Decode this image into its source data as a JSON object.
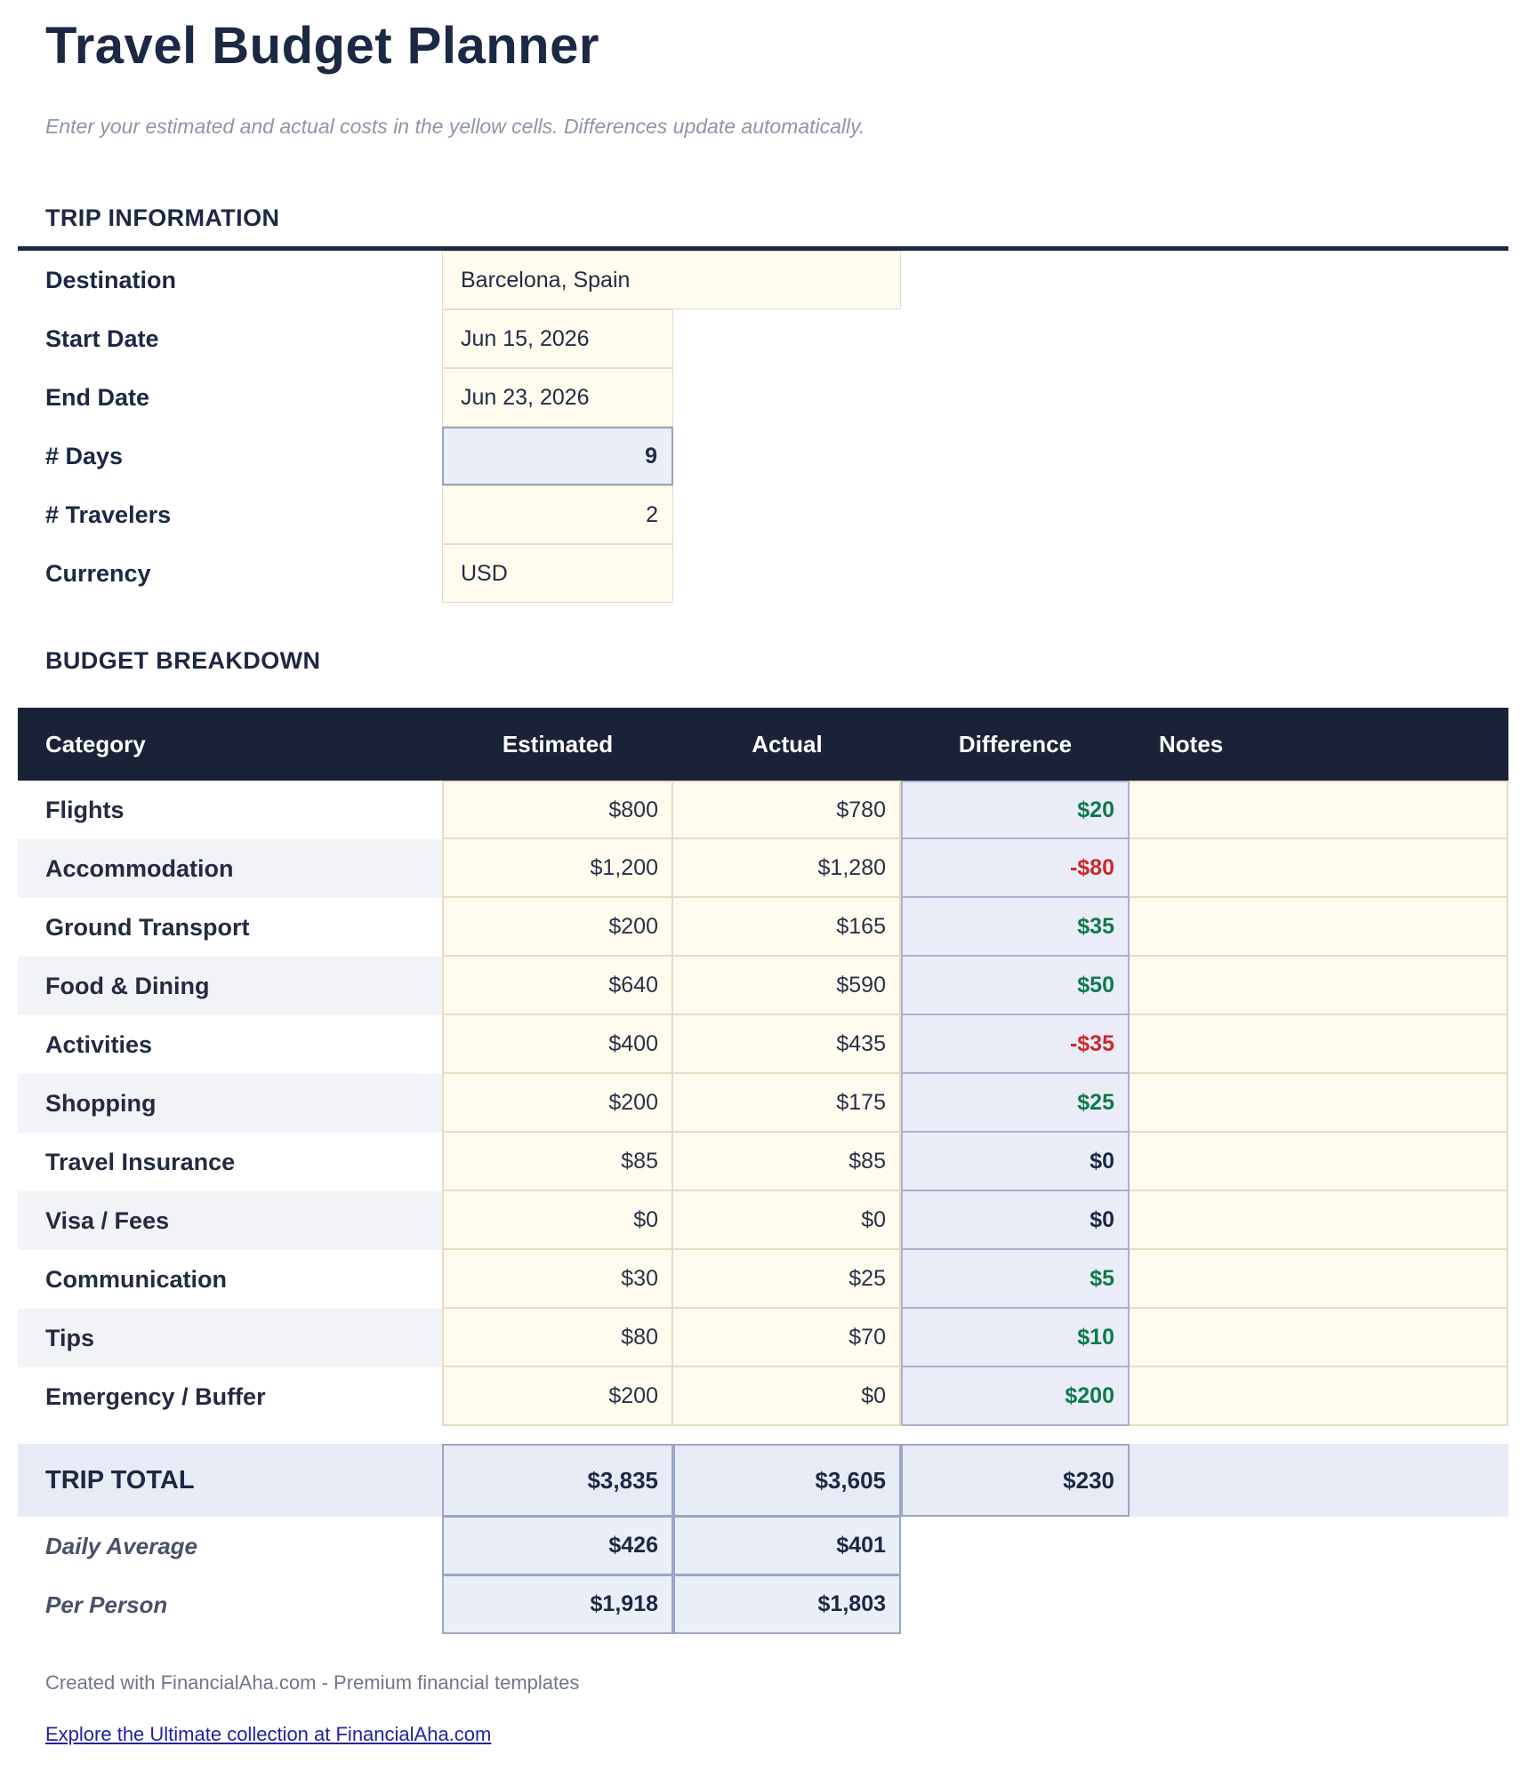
{
  "page": {
    "title": "Travel Budget Planner",
    "subtitle": "Enter your estimated and actual costs in the yellow cells. Differences update automatically."
  },
  "trip_info": {
    "heading": "TRIP INFORMATION",
    "rows": [
      {
        "label": "Destination",
        "value": "Barcelona, Spain"
      },
      {
        "label": "Start Date",
        "value": "Jun 15, 2026"
      },
      {
        "label": "End Date",
        "value": "Jun 23, 2026"
      },
      {
        "label": "# Days",
        "value": "9"
      },
      {
        "label": "# Travelers",
        "value": "2"
      },
      {
        "label": "Currency",
        "value": "USD"
      }
    ]
  },
  "budget": {
    "heading": "BUDGET BREAKDOWN",
    "columns": [
      "Category",
      "Estimated",
      "Actual",
      "Difference",
      "Notes"
    ],
    "rows": [
      {
        "category": "Flights",
        "estimated": "$800",
        "actual": "$780",
        "difference": "$20",
        "notes": ""
      },
      {
        "category": "Accommodation",
        "estimated": "$1,200",
        "actual": "$1,280",
        "difference": "-$80",
        "notes": ""
      },
      {
        "category": "Ground Transport",
        "estimated": "$200",
        "actual": "$165",
        "difference": "$35",
        "notes": ""
      },
      {
        "category": "Food & Dining",
        "estimated": "$640",
        "actual": "$590",
        "difference": "$50",
        "notes": ""
      },
      {
        "category": "Activities",
        "estimated": "$400",
        "actual": "$435",
        "difference": "-$35",
        "notes": ""
      },
      {
        "category": "Shopping",
        "estimated": "$200",
        "actual": "$175",
        "difference": "$25",
        "notes": ""
      },
      {
        "category": "Travel Insurance",
        "estimated": "$85",
        "actual": "$85",
        "difference": "$0",
        "notes": ""
      },
      {
        "category": "Visa / Fees",
        "estimated": "$0",
        "actual": "$0",
        "difference": "$0",
        "notes": ""
      },
      {
        "category": "Communication",
        "estimated": "$30",
        "actual": "$25",
        "difference": "$5",
        "notes": ""
      },
      {
        "category": "Tips",
        "estimated": "$80",
        "actual": "$70",
        "difference": "$10",
        "notes": ""
      },
      {
        "category": "Emergency / Buffer",
        "estimated": "$200",
        "actual": "$0",
        "difference": "$200",
        "notes": ""
      }
    ],
    "total": {
      "label": "TRIP TOTAL",
      "estimated": "$3,835",
      "actual": "$3,605",
      "difference": "$230"
    },
    "summary": [
      {
        "label": "Daily Average",
        "estimated": "$426",
        "actual": "$401"
      },
      {
        "label": "Per Person",
        "estimated": "$1,918",
        "actual": "$1,803"
      }
    ]
  },
  "footer": {
    "credit": "Created with FinancialAha.com - Premium financial templates",
    "link": "Explore the Ultimate collection at FinancialAha.com"
  },
  "colors": {
    "navy": "#1c2844",
    "header-navy": "#1a2238",
    "yellow": "#fffcef",
    "computed-bg": "#eaeef7",
    "green": "#0e7a4e",
    "red": "#cb282d",
    "link-blue": "#22239e"
  }
}
